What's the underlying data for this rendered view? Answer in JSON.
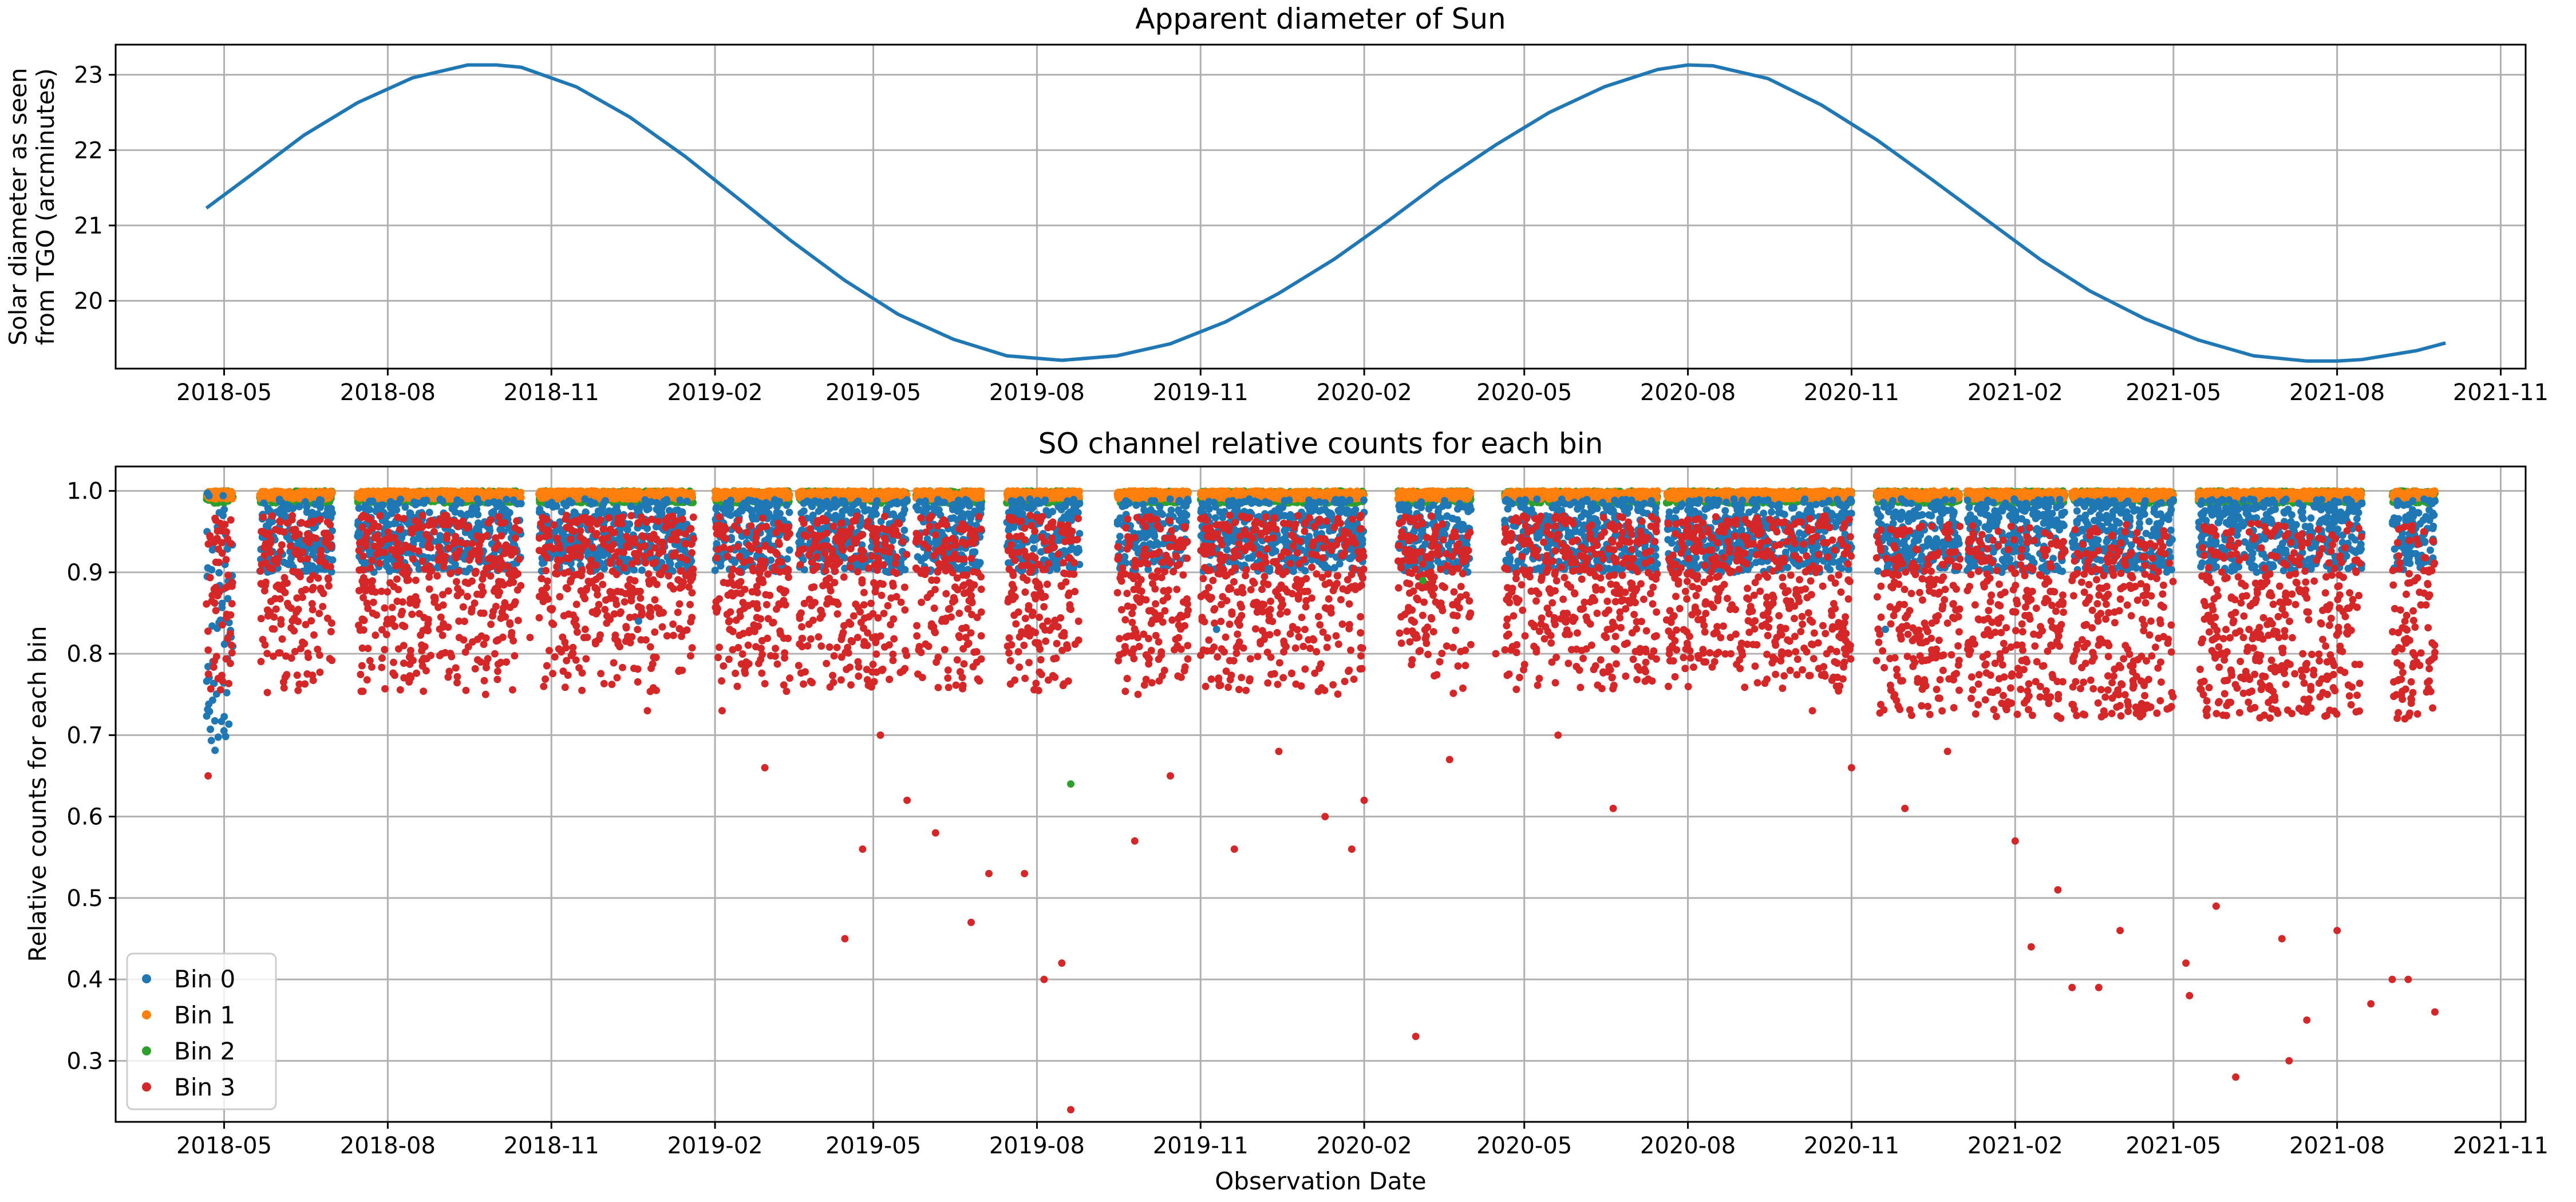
{
  "chart_data": [
    {
      "type": "line",
      "title": "Apparent diameter of Sun",
      "ylabel_lines": [
        "Solar diameter as seen",
        "from TGO (arcminutes)"
      ],
      "xlabel": "",
      "x_ticks": [
        "2018-05",
        "2018-08",
        "2018-11",
        "2019-02",
        "2019-05",
        "2019-08",
        "2019-11",
        "2020-02",
        "2020-05",
        "2020-08",
        "2020-11",
        "2021-02",
        "2021-05",
        "2021-08",
        "2021-11"
      ],
      "y_ticks": [
        20,
        21,
        22,
        23
      ],
      "xlim": [
        "2018-03-01",
        "2021-11-15"
      ],
      "ylim": [
        19.1,
        23.4
      ],
      "grid": true,
      "color": "#1f77b4",
      "series": [
        {
          "x": [
            "2018-04-21",
            "2018-05-15",
            "2018-06-15",
            "2018-07-15",
            "2018-08-15",
            "2018-09-15",
            "2018-10-01",
            "2018-10-15",
            "2018-11-15",
            "2018-12-15",
            "2019-01-15",
            "2019-02-15",
            "2019-03-15",
            "2019-04-15",
            "2019-05-15",
            "2019-06-15",
            "2019-07-15",
            "2019-08-15",
            "2019-09-15",
            "2019-10-15",
            "2019-11-15",
            "2019-12-15",
            "2020-01-15",
            "2020-02-15",
            "2020-03-15",
            "2020-04-15",
            "2020-05-15",
            "2020-06-15",
            "2020-07-15",
            "2020-08-01",
            "2020-08-15",
            "2020-09-15",
            "2020-10-15",
            "2020-11-15",
            "2020-12-15",
            "2021-01-15",
            "2021-02-15",
            "2021-03-15",
            "2021-04-15",
            "2021-05-15",
            "2021-06-15",
            "2021-07-15",
            "2021-08-01",
            "2021-08-15",
            "2021-09-15",
            "2021-10-01"
          ],
          "y": [
            21.23,
            21.65,
            22.2,
            22.63,
            22.96,
            23.13,
            23.13,
            23.1,
            22.84,
            22.44,
            21.92,
            21.34,
            20.81,
            20.27,
            19.82,
            19.49,
            19.27,
            19.21,
            19.27,
            19.43,
            19.72,
            20.1,
            20.55,
            21.07,
            21.58,
            22.07,
            22.5,
            22.84,
            23.07,
            23.13,
            23.12,
            22.95,
            22.6,
            22.14,
            21.63,
            21.09,
            20.55,
            20.13,
            19.76,
            19.48,
            19.27,
            19.2,
            19.2,
            19.22,
            19.34,
            19.44
          ]
        }
      ]
    },
    {
      "type": "scatter",
      "title": "SO channel relative counts for each bin",
      "xlabel": "Observation Date",
      "ylabel": "Relative counts for each bin",
      "x_ticks": [
        "2018-05",
        "2018-08",
        "2018-11",
        "2019-02",
        "2019-05",
        "2019-08",
        "2019-11",
        "2020-02",
        "2020-05",
        "2020-08",
        "2020-11",
        "2021-02",
        "2021-05",
        "2021-08",
        "2021-11"
      ],
      "y_ticks": [
        "0.3",
        "0.4",
        "0.5",
        "0.6",
        "0.7",
        "0.8",
        "0.9",
        "1.0"
      ],
      "xlim": [
        "2018-03-01",
        "2021-11-15"
      ],
      "ylim": [
        0.225,
        1.03
      ],
      "grid": true,
      "legend": "lower-left",
      "observation_periods": [
        [
          "2018-04-21",
          "2018-05-06"
        ],
        [
          "2018-05-21",
          "2018-07-01"
        ],
        [
          "2018-07-15",
          "2018-10-15"
        ],
        [
          "2018-10-25",
          "2019-01-20"
        ],
        [
          "2019-02-01",
          "2019-03-15"
        ],
        [
          "2019-03-20",
          "2019-05-20"
        ],
        [
          "2019-05-25",
          "2019-07-01"
        ],
        [
          "2019-07-15",
          "2019-08-25"
        ],
        [
          "2019-09-15",
          "2019-10-25"
        ],
        [
          "2019-11-01",
          "2020-02-01"
        ],
        [
          "2020-02-20",
          "2020-04-01"
        ],
        [
          "2020-04-20",
          "2020-07-15"
        ],
        [
          "2020-07-20",
          "2020-11-01"
        ],
        [
          "2020-11-15",
          "2021-01-01"
        ],
        [
          "2021-01-05",
          "2021-03-01"
        ],
        [
          "2021-03-05",
          "2021-05-01"
        ],
        [
          "2021-05-15",
          "2021-08-15"
        ],
        [
          "2021-09-01",
          "2021-09-25"
        ]
      ],
      "series": [
        {
          "name": "Bin 0",
          "color": "#1f77b4",
          "typical": [
            0.9,
            0.99
          ]
        },
        {
          "name": "Bin 1",
          "color": "#ff7f0e",
          "typical": [
            0.99,
            1.0
          ]
        },
        {
          "name": "Bin 2",
          "color": "#2ca02c",
          "typical": [
            0.985,
            1.0
          ]
        },
        {
          "name": "Bin 3",
          "color": "#d62728",
          "typical": [
            0.75,
            0.97
          ]
        }
      ],
      "outliers_bin3": [
        [
          "2018-04-22",
          0.65
        ],
        [
          "2018-08-10",
          0.81
        ],
        [
          "2018-09-10",
          0.84
        ],
        [
          "2018-09-25",
          0.75
        ],
        [
          "2018-10-20",
          0.82
        ],
        [
          "2018-11-20",
          0.83
        ],
        [
          "2018-12-25",
          0.73
        ],
        [
          "2019-02-05",
          0.73
        ],
        [
          "2019-03-01",
          0.66
        ],
        [
          "2019-03-15",
          0.77
        ],
        [
          "2019-04-15",
          0.45
        ],
        [
          "2019-04-25",
          0.56
        ],
        [
          "2019-05-05",
          0.7
        ],
        [
          "2019-05-20",
          0.62
        ],
        [
          "2019-06-05",
          0.58
        ],
        [
          "2019-06-25",
          0.47
        ],
        [
          "2019-07-05",
          0.53
        ],
        [
          "2019-07-25",
          0.53
        ],
        [
          "2019-08-05",
          0.4
        ],
        [
          "2019-08-15",
          0.42
        ],
        [
          "2019-08-20",
          0.24
        ],
        [
          "2019-09-25",
          0.57
        ],
        [
          "2019-10-15",
          0.65
        ],
        [
          "2019-11-20",
          0.56
        ],
        [
          "2019-12-15",
          0.68
        ],
        [
          "2020-01-10",
          0.6
        ],
        [
          "2020-01-25",
          0.56
        ],
        [
          "2020-02-01",
          0.62
        ],
        [
          "2020-03-01",
          0.33
        ],
        [
          "2020-03-20",
          0.67
        ],
        [
          "2020-04-15",
          0.8
        ],
        [
          "2020-05-20",
          0.7
        ],
        [
          "2020-06-20",
          0.61
        ],
        [
          "2020-07-05",
          0.78
        ],
        [
          "2020-08-10",
          0.79
        ],
        [
          "2020-09-20",
          0.82
        ],
        [
          "2020-10-10",
          0.73
        ],
        [
          "2020-11-01",
          0.66
        ],
        [
          "2020-12-01",
          0.61
        ],
        [
          "2020-12-25",
          0.68
        ],
        [
          "2021-02-01",
          0.57
        ],
        [
          "2021-02-10",
          0.44
        ],
        [
          "2021-02-25",
          0.51
        ],
        [
          "2021-03-05",
          0.39
        ],
        [
          "2021-03-20",
          0.39
        ],
        [
          "2021-04-01",
          0.46
        ],
        [
          "2021-05-08",
          0.42
        ],
        [
          "2021-05-10",
          0.38
        ],
        [
          "2021-05-25",
          0.49
        ],
        [
          "2021-06-05",
          0.28
        ],
        [
          "2021-07-01",
          0.45
        ],
        [
          "2021-07-05",
          0.3
        ],
        [
          "2021-07-15",
          0.35
        ],
        [
          "2021-08-01",
          0.46
        ],
        [
          "2021-08-20",
          0.37
        ],
        [
          "2021-09-01",
          0.4
        ],
        [
          "2021-09-10",
          0.4
        ],
        [
          "2021-09-25",
          0.36
        ]
      ],
      "outliers_bin0": [
        [
          "2018-12-20",
          0.84
        ],
        [
          "2019-11-10",
          0.83
        ],
        [
          "2020-11-20",
          0.83
        ]
      ],
      "outliers_bin2": [
        [
          "2019-08-20",
          0.64
        ],
        [
          "2020-03-05",
          0.89
        ]
      ]
    }
  ]
}
